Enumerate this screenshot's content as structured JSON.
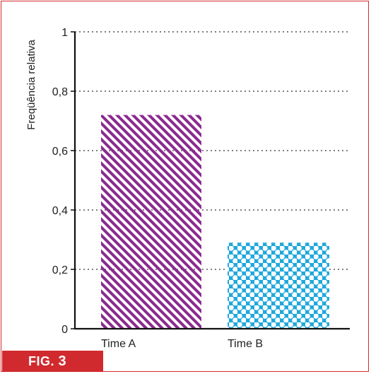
{
  "figure": {
    "tag_prefix": "FIG.",
    "tag_number": "3"
  },
  "colors": {
    "frame": "#d12a2e",
    "bar_a": "#8b2a8f",
    "bar_b": "#1fa8dc",
    "grid": "#333333"
  },
  "chart_data": {
    "type": "bar",
    "categories": [
      "Time A",
      "Time B"
    ],
    "values": [
      0.72,
      0.29
    ],
    "patterns": [
      "diagonal-stripes",
      "polka-dots"
    ],
    "xlabel": "",
    "ylabel": "Freqüência relativa",
    "ylim": [
      0,
      1
    ],
    "yticks": [
      0,
      0.2,
      0.4,
      0.6,
      0.8,
      1
    ],
    "ytick_labels": [
      "0",
      "0,2",
      "0,4",
      "0,6",
      "0,8",
      "1"
    ],
    "grid": "dotted horizontal",
    "legend": "none"
  }
}
